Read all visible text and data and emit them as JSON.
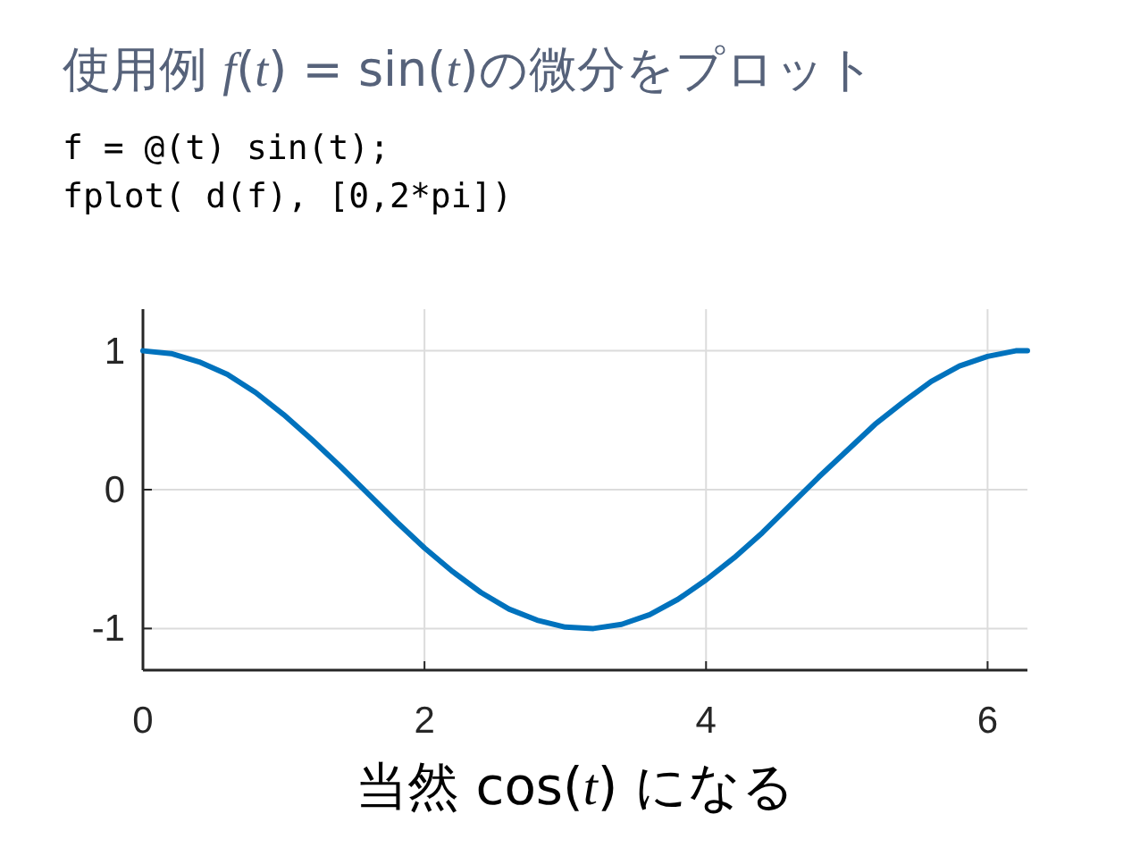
{
  "chart_data": {
    "type": "line",
    "title": "使用例 *f*(*t*) = sin(*t*)の微分をプロット",
    "annotations": [
      "f = @(t) sin(t);",
      "fplot( d(f), [0,2*pi])"
    ],
    "xlabel": "当然 cos(*t*) になる",
    "x": [
      0,
      0.2,
      0.4,
      0.6,
      0.8,
      1.0,
      1.2,
      1.4,
      1.6,
      1.8,
      2.0,
      2.2,
      2.4,
      2.6,
      2.8,
      3.0,
      3.2,
      3.4,
      3.6,
      3.8,
      4.0,
      4.2,
      4.4,
      4.6,
      4.8,
      5.0,
      5.2,
      5.4,
      5.6,
      5.8,
      6.0,
      6.2,
      6.283
    ],
    "series": [
      {
        "color": "#0072bd",
        "values": [
          1,
          0.98,
          0.92,
          0.83,
          0.7,
          0.54,
          0.36,
          0.17,
          -0.03,
          -0.23,
          -0.42,
          -0.59,
          -0.74,
          -0.86,
          -0.94,
          -0.99,
          -1.0,
          -0.97,
          -0.9,
          -0.79,
          -0.65,
          -0.49,
          -0.31,
          -0.11,
          0.09,
          0.28,
          0.47,
          0.63,
          0.78,
          0.89,
          0.96,
          1.0,
          1.0
        ]
      }
    ],
    "xlim": [
      0,
      6.283
    ],
    "ylim": [
      -1.3,
      1.3
    ],
    "xticks": [
      0,
      2,
      4,
      6
    ],
    "yticks": [
      -1,
      0,
      1
    ],
    "grid": true,
    "marker": "none",
    "line_style": "solid"
  }
}
